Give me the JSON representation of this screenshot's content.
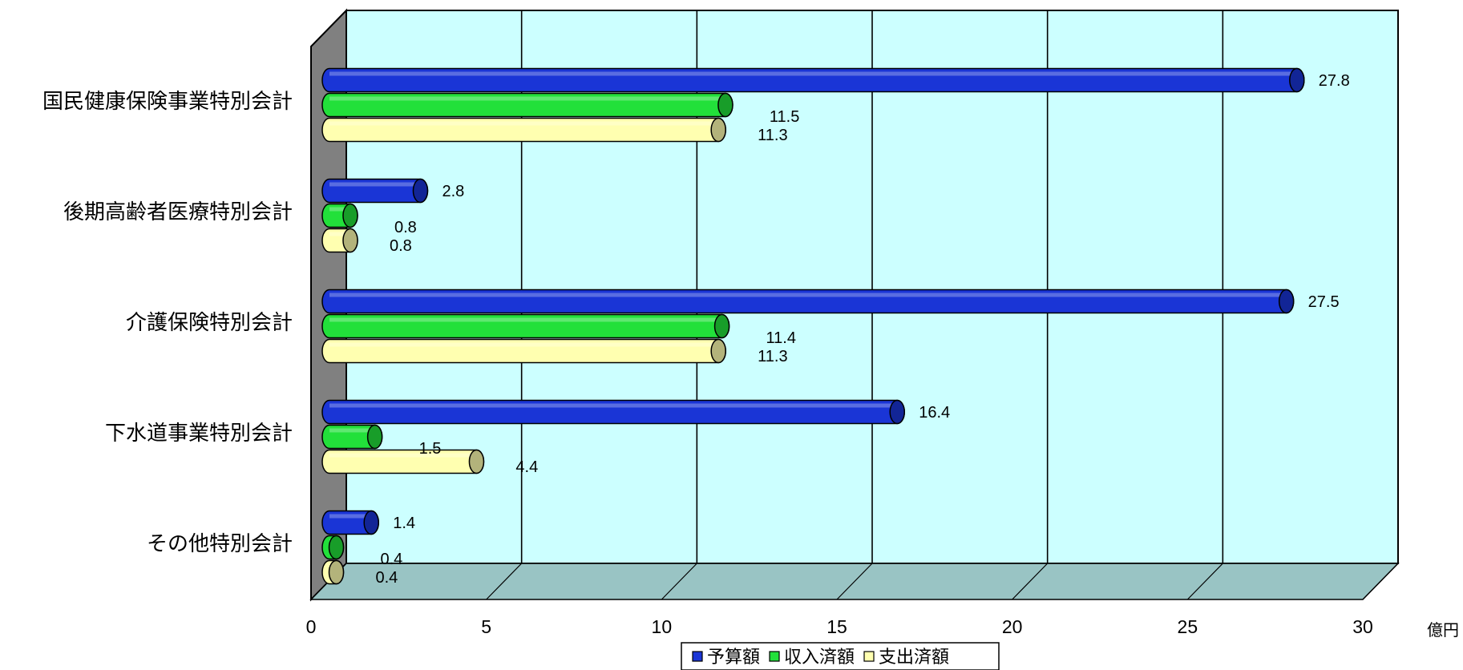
{
  "chart_data": {
    "type": "bar",
    "orientation": "horizontal",
    "style": "3d-cylinder",
    "categories": [
      "国民健康保険事業特別会計",
      "後期高齢者医療特別会計",
      "介護保険特別会計",
      "下水道事業特別会計",
      "その他特別会計"
    ],
    "series": [
      {
        "name": "予算額",
        "color": "#1a35d6",
        "values": [
          27.8,
          2.8,
          27.5,
          16.4,
          1.4
        ],
        "labels": [
          "27.8",
          "2.8",
          "27.5",
          "16.4",
          "1.4"
        ]
      },
      {
        "name": "収入済額",
        "color": "#22e03a",
        "values": [
          11.5,
          0.8,
          11.4,
          1.5,
          0.4
        ],
        "labels": [
          "11.5",
          "0.8",
          "11.4",
          "1.5",
          "0.4"
        ]
      },
      {
        "name": "支出済額",
        "color": "#ffffb0",
        "values": [
          11.3,
          0.8,
          11.3,
          4.4,
          0.4
        ],
        "labels": [
          "11.3",
          "0.8",
          "11.3",
          "4.4",
          "0.4"
        ]
      }
    ],
    "xlim": [
      0,
      30
    ],
    "x_ticks": [
      "0",
      "5",
      "10",
      "15",
      "20",
      "25",
      "30"
    ],
    "x_unit": "億円",
    "grid": true,
    "legend_position": "bottom",
    "wall_color": "#ccffff",
    "floor_color": "#99c4c4",
    "side_wall_color": "#808080"
  }
}
